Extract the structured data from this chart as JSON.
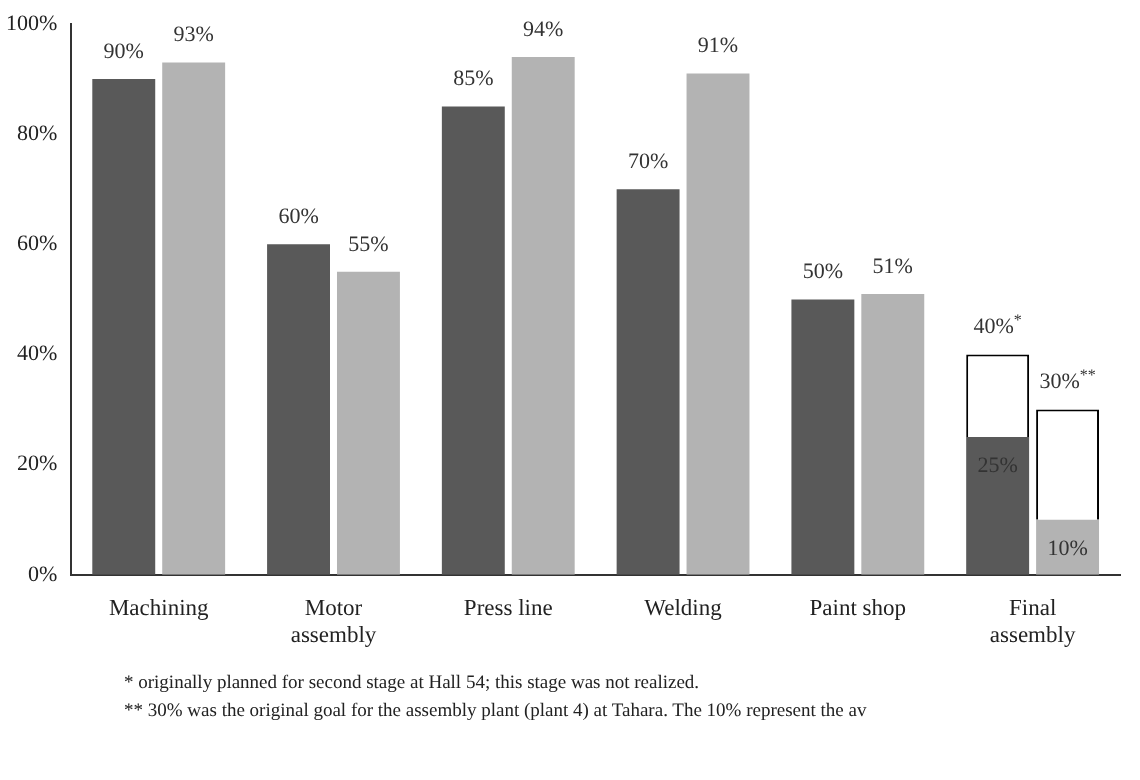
{
  "chart_data": {
    "type": "bar",
    "categories": [
      "Machining",
      "Motor\nassembly",
      "Press line",
      "Welding",
      "Paint shop",
      "Final\nassembly"
    ],
    "series": [
      {
        "color": "#595959",
        "values": [
          90,
          60,
          85,
          70,
          50,
          25
        ],
        "value_labels": [
          "90%",
          "60%",
          "85%",
          "70%",
          "50%",
          "25%"
        ]
      },
      {
        "color": "#ffffff",
        "values": [
          null,
          null,
          null,
          null,
          null,
          15
        ],
        "base": [
          null,
          null,
          null,
          null,
          null,
          25
        ],
        "value_labels": [
          null,
          null,
          null,
          null,
          null,
          "40%$^{*}$"
        ]
      },
      {
        "color": "#b3b3b3",
        "values": [
          93,
          55,
          94,
          91,
          51,
          10
        ],
        "value_labels": [
          "93%",
          "55%",
          "94%",
          "91%",
          "51%",
          "10%"
        ]
      },
      {
        "color": "#ffffff",
        "values": [
          null,
          null,
          null,
          null,
          null,
          20
        ],
        "base": [
          null,
          null,
          null,
          null,
          null,
          10
        ],
        "value_labels": [
          null,
          null,
          null,
          null,
          null,
          "30%$^{**}$"
        ]
      }
    ],
    "ylim": [
      0,
      100
    ],
    "yticks": [
      {
        "value": 0,
        "label": "0%"
      },
      {
        "value": 20,
        "label": "20%"
      },
      {
        "value": 40,
        "label": "40%"
      },
      {
        "value": 60,
        "label": "60%"
      },
      {
        "value": 80,
        "label": "80%"
      },
      {
        "value": 100,
        "label": "100%"
      }
    ],
    "grid": false,
    "legend": false,
    "annotations": [
      "*   originally planned for second stage at Hall 54; this stage was not realized.",
      "** 30% was the original goal for the assembly plant (plant 4) at Tahara. The 10% represent the av"
    ]
  }
}
